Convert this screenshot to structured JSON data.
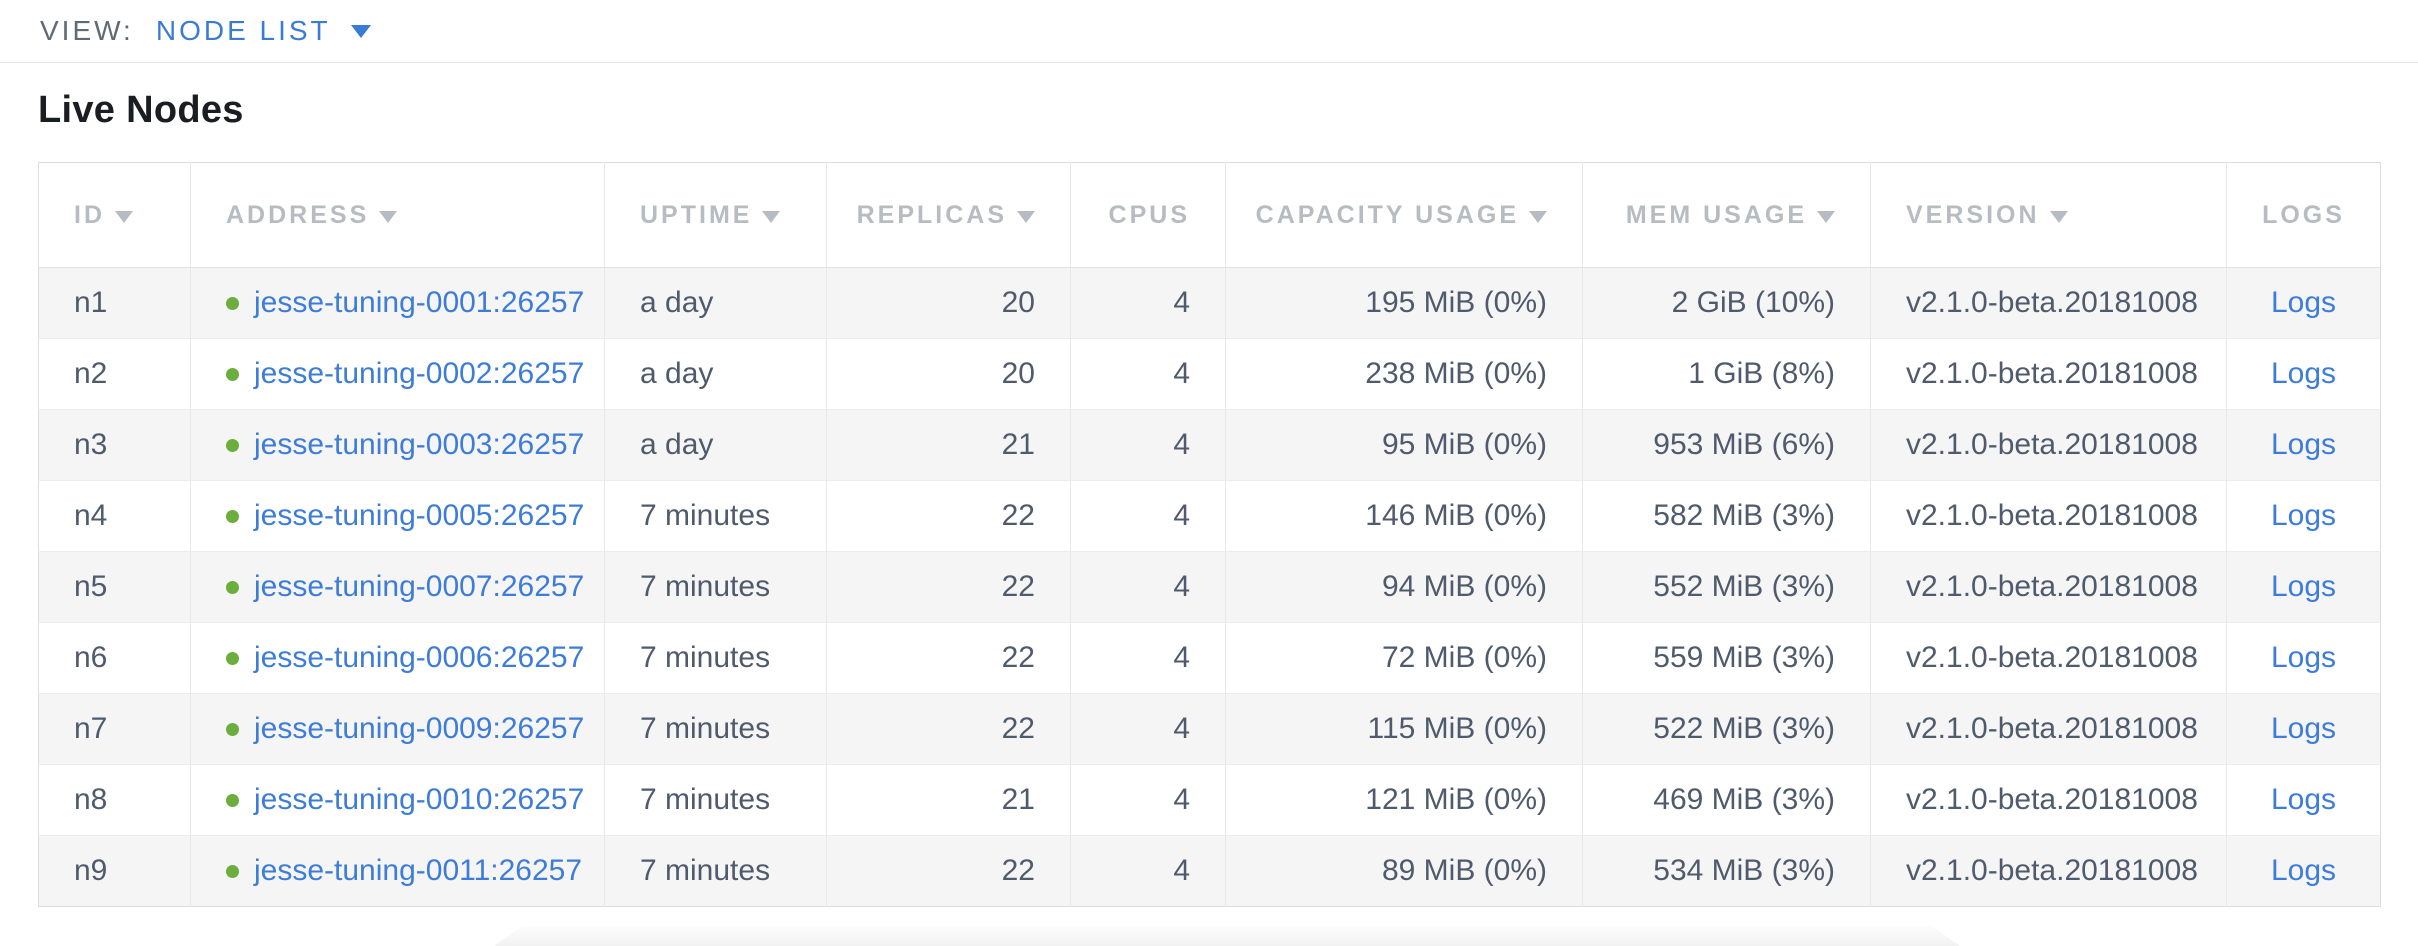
{
  "view_bar": {
    "label": "VIEW:",
    "selected_view": "NODE LIST"
  },
  "page": {
    "title": "Live Nodes"
  },
  "table": {
    "columns": [
      {
        "label": "ID",
        "field": "id",
        "sortable": true,
        "align": "left"
      },
      {
        "label": "ADDRESS",
        "field": "address",
        "sortable": true,
        "align": "left"
      },
      {
        "label": "UPTIME",
        "field": "uptime",
        "sortable": true,
        "align": "left"
      },
      {
        "label": "REPLICAS",
        "field": "replicas",
        "sortable": true,
        "align": "right"
      },
      {
        "label": "CPUS",
        "field": "cpus",
        "sortable": false,
        "align": "right"
      },
      {
        "label": "CAPACITY USAGE",
        "field": "capacity_usage",
        "sortable": true,
        "align": "right"
      },
      {
        "label": "MEM USAGE",
        "field": "mem_usage",
        "sortable": true,
        "align": "right"
      },
      {
        "label": "VERSION",
        "field": "version",
        "sortable": true,
        "align": "left"
      },
      {
        "label": "LOGS",
        "field": "logs",
        "sortable": false,
        "align": "center"
      }
    ],
    "rows": [
      {
        "id": "n1",
        "status": "live",
        "address": "jesse-tuning-0001:26257",
        "uptime": "a day",
        "replicas": "20",
        "cpus": "4",
        "capacity_usage": "195 MiB (0%)",
        "mem_usage": "2 GiB (10%)",
        "version": "v2.1.0-beta.20181008",
        "logs": "Logs"
      },
      {
        "id": "n2",
        "status": "live",
        "address": "jesse-tuning-0002:26257",
        "uptime": "a day",
        "replicas": "20",
        "cpus": "4",
        "capacity_usage": "238 MiB (0%)",
        "mem_usage": "1 GiB (8%)",
        "version": "v2.1.0-beta.20181008",
        "logs": "Logs"
      },
      {
        "id": "n3",
        "status": "live",
        "address": "jesse-tuning-0003:26257",
        "uptime": "a day",
        "replicas": "21",
        "cpus": "4",
        "capacity_usage": "95 MiB (0%)",
        "mem_usage": "953 MiB (6%)",
        "version": "v2.1.0-beta.20181008",
        "logs": "Logs"
      },
      {
        "id": "n4",
        "status": "live",
        "address": "jesse-tuning-0005:26257",
        "uptime": "7 minutes",
        "replicas": "22",
        "cpus": "4",
        "capacity_usage": "146 MiB (0%)",
        "mem_usage": "582 MiB (3%)",
        "version": "v2.1.0-beta.20181008",
        "logs": "Logs"
      },
      {
        "id": "n5",
        "status": "live",
        "address": "jesse-tuning-0007:26257",
        "uptime": "7 minutes",
        "replicas": "22",
        "cpus": "4",
        "capacity_usage": "94 MiB (0%)",
        "mem_usage": "552 MiB (3%)",
        "version": "v2.1.0-beta.20181008",
        "logs": "Logs"
      },
      {
        "id": "n6",
        "status": "live",
        "address": "jesse-tuning-0006:26257",
        "uptime": "7 minutes",
        "replicas": "22",
        "cpus": "4",
        "capacity_usage": "72 MiB (0%)",
        "mem_usage": "559 MiB (3%)",
        "version": "v2.1.0-beta.20181008",
        "logs": "Logs"
      },
      {
        "id": "n7",
        "status": "live",
        "address": "jesse-tuning-0009:26257",
        "uptime": "7 minutes",
        "replicas": "22",
        "cpus": "4",
        "capacity_usage": "115 MiB (0%)",
        "mem_usage": "522 MiB (3%)",
        "version": "v2.1.0-beta.20181008",
        "logs": "Logs"
      },
      {
        "id": "n8",
        "status": "live",
        "address": "jesse-tuning-0010:26257",
        "uptime": "7 minutes",
        "replicas": "21",
        "cpus": "4",
        "capacity_usage": "121 MiB (0%)",
        "mem_usage": "469 MiB (3%)",
        "version": "v2.1.0-beta.20181008",
        "logs": "Logs"
      },
      {
        "id": "n9",
        "status": "live",
        "address": "jesse-tuning-0011:26257",
        "uptime": "7 minutes",
        "replicas": "22",
        "cpus": "4",
        "capacity_usage": "89 MiB (0%)",
        "mem_usage": "534 MiB (3%)",
        "version": "v2.1.0-beta.20181008",
        "logs": "Logs"
      }
    ]
  },
  "icons": {
    "chevron_down": "triangle-down",
    "sort_descending": "triangle-down",
    "status_live": "green-dot"
  },
  "colors": {
    "accent_blue": "#3a7bd5",
    "link_blue": "#3d7cd8",
    "live_green": "#6cae3e",
    "header_gray": "#b7bcc2",
    "cell_text": "#4f5b6c",
    "title_text": "#1a1e23",
    "row_alt_bg": "#f5f5f6",
    "table_border": "#dcdcde"
  }
}
